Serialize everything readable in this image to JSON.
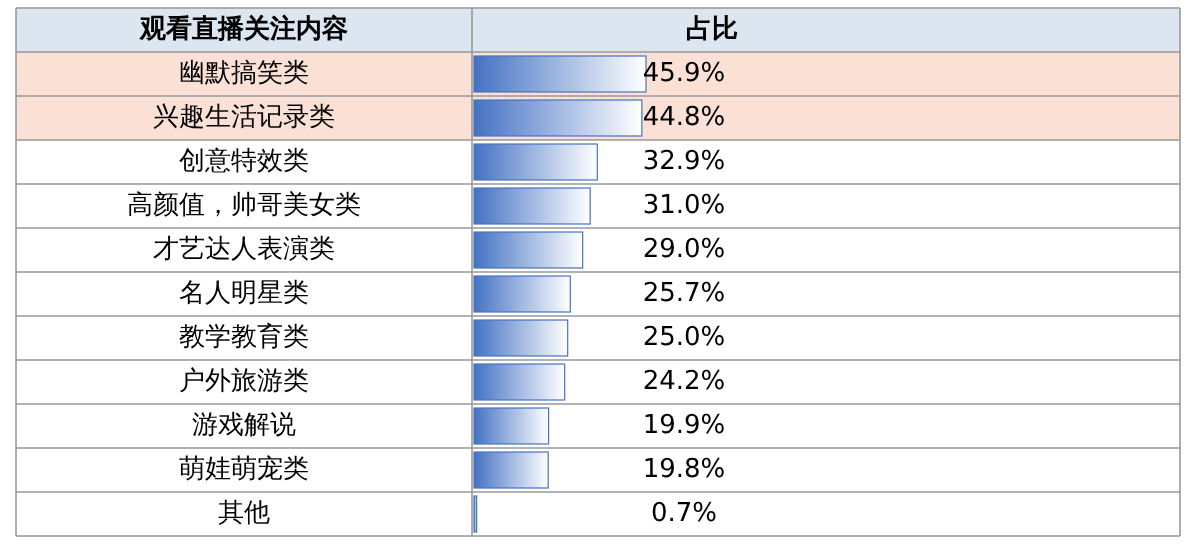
{
  "chart_data": {
    "type": "bar",
    "orientation": "horizontal",
    "ylabel": "观看直播关注内容",
    "annotations": [
      "占比"
    ],
    "categories": [
      "幽默搞笑类",
      "兴趣生活记录类",
      "创意特效类",
      "高颜值，帅哥美女类",
      "才艺达人表演类",
      "名人明星类",
      "教学教育类",
      "户外旅游类",
      "游戏解说",
      "萌娃萌宠类",
      "其他"
    ],
    "values": [
      45.9,
      44.8,
      32.9,
      31.0,
      29.0,
      25.7,
      25.0,
      24.2,
      19.9,
      19.8,
      0.7
    ],
    "value_labels": [
      "45.9%",
      "44.8%",
      "32.9%",
      "31.0%",
      "29.0%",
      "25.7%",
      "25.0%",
      "24.2%",
      "19.9%",
      "19.8%",
      "0.7%"
    ],
    "color": "#4472c4",
    "bands": [
      {
        "axis": "y",
        "from": "幽默搞笑类",
        "to": "兴趣生活记录类",
        "color": "#fbe0d6"
      }
    ]
  }
}
